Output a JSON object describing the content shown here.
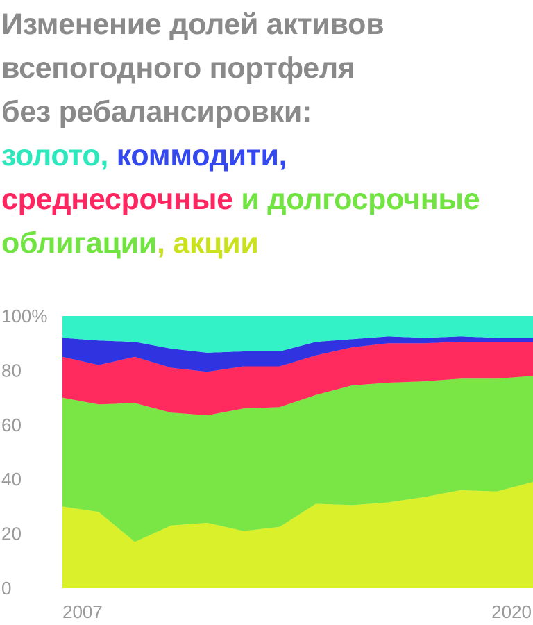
{
  "title": {
    "line1": "Изменение долей активов",
    "line2": "всепогодного портфеля",
    "line3": "без ребалансировки:",
    "gold": "золото",
    "sep1": ", ",
    "commodities": "коммодити",
    "sep2": ",",
    "mid_bonds": "среднесрочные",
    "and": " и ",
    "long_bonds_1": "долгосрочные",
    "long_bonds_2": "облигации",
    "sep3": ", ",
    "stocks": "акции"
  },
  "chart_data": {
    "type": "area",
    "stacked": true,
    "x": [
      2007,
      2008,
      2009,
      2010,
      2011,
      2012,
      2013,
      2014,
      2015,
      2016,
      2017,
      2018,
      2019,
      2020
    ],
    "x_tick_labels": [
      "2007",
      "2020"
    ],
    "y_ticks": [
      0,
      20,
      40,
      60,
      80,
      100
    ],
    "y_tick_labels": [
      "0",
      "20",
      "40",
      "60",
      "80",
      "100%"
    ],
    "ylim": [
      0,
      100
    ],
    "grid": false,
    "series": [
      {
        "key": "stocks",
        "color": "#d9f02a",
        "values": [
          30,
          28,
          17,
          23,
          24,
          21,
          22.5,
          31,
          30.5,
          31.5,
          33.5,
          36,
          35.5,
          39
        ]
      },
      {
        "key": "long_bonds",
        "color": "#7ae645",
        "values": [
          40,
          39.5,
          51,
          41.5,
          39.5,
          45,
          44,
          40,
          44,
          44,
          42.5,
          41,
          41.5,
          39
        ]
      },
      {
        "key": "mid_bonds",
        "color": "#ff2a5e",
        "values": [
          15,
          14.5,
          17,
          16.5,
          16,
          15.5,
          15,
          14.5,
          14,
          14.5,
          14,
          13.5,
          13.5,
          12.5
        ]
      },
      {
        "key": "commodities",
        "color": "#2f33e0",
        "values": [
          7,
          9,
          5.5,
          7,
          7,
          5.5,
          5.5,
          5,
          3,
          2.5,
          2,
          2,
          1.5,
          1.5
        ]
      },
      {
        "key": "gold",
        "color": "#33f2c7",
        "values": [
          8,
          9,
          9.5,
          12,
          13.5,
          13,
          13,
          9.5,
          8.5,
          7.5,
          8,
          7.5,
          8,
          8
        ]
      }
    ]
  }
}
